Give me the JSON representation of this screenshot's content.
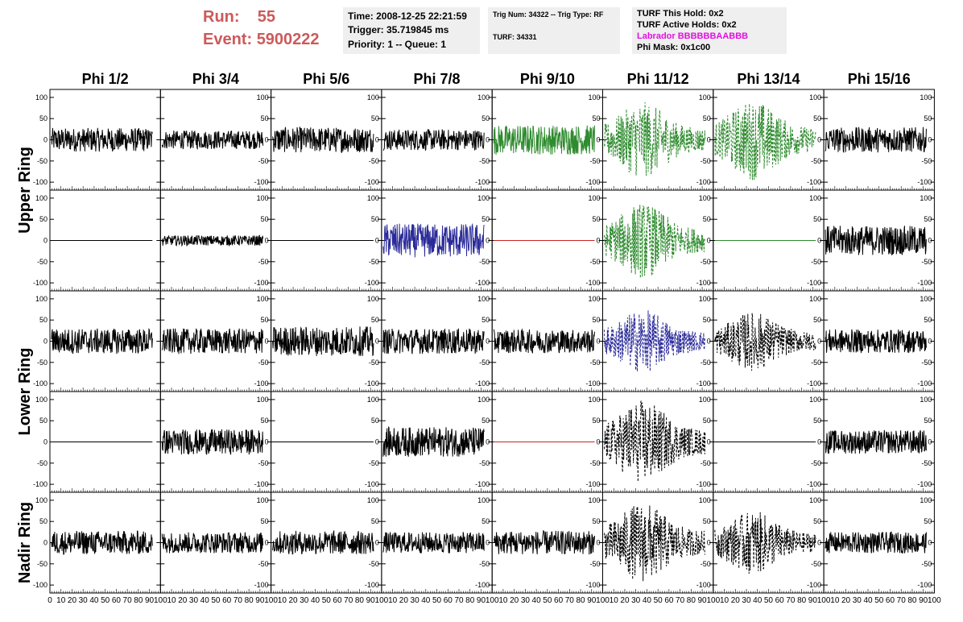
{
  "header": {
    "run_label": "Run:",
    "run_value": "55",
    "event_label": "Event:",
    "event_value": "5900222",
    "time": "Time: 2008-12-25 22:21:59",
    "trigger": "Trigger: 35.719845 ms",
    "priority": "Priority: 1 -- Queue: 1",
    "trig_num": "Trig Num: 34322 -- Trig Type: RF",
    "turf": "TURF: 34331",
    "turf_hold": "TURF This Hold: 0x2",
    "turf_active": "TURF Active Holds: 0x2",
    "labrador": "Labrador BBBBBBAABBB",
    "phi_mask": "Phi Mask: 0x1c00"
  },
  "columns": [
    "Phi 1/2",
    "Phi 3/4",
    "Phi 5/6",
    "Phi 7/8",
    "Phi 9/10",
    "Phi 11/12",
    "Phi 13/14",
    "Phi 15/16"
  ],
  "rows": [
    "Upper Ring",
    "Upper Ring",
    "Lower Ring",
    "Lower Ring",
    "Nadir Ring"
  ],
  "ring_labels": [
    "Upper Ring",
    "Lower Ring",
    "Nadir Ring"
  ],
  "colors": {
    "black": "#000000",
    "green": "#2e8b2e",
    "blue": "#2a2a9a",
    "red": "#cc2222",
    "run_text": "#cc5a5a",
    "magenta": "#e010e0",
    "info_bg": "#efefef"
  },
  "chart_data": {
    "type": "line",
    "title": "",
    "xlabel": "",
    "ylabel": "",
    "xlim": [
      0,
      100
    ],
    "ylim": [
      -115,
      115
    ],
    "x_ticks": [
      "0",
      "10",
      "20",
      "30",
      "40",
      "50",
      "60",
      "70",
      "80",
      "90",
      "100"
    ],
    "y_ticks": [
      "100",
      "50",
      "0",
      "-50",
      "-100"
    ],
    "grid": false,
    "legend": "none",
    "panels": [
      [
        {
          "color": "black",
          "amp": 28,
          "dashed": false,
          "burst": false
        },
        {
          "color": "black",
          "amp": 22,
          "dashed": false,
          "burst": false
        },
        {
          "color": "black",
          "amp": 30,
          "dashed": false,
          "burst": false
        },
        {
          "color": "black",
          "amp": 25,
          "dashed": false,
          "burst": false
        },
        {
          "color": "green",
          "amp": 35,
          "dashed": false,
          "burst": false
        },
        {
          "color": "green",
          "amp": 90,
          "dashed": true,
          "burst": true
        },
        {
          "color": "green",
          "amp": 95,
          "dashed": true,
          "burst": true
        },
        {
          "color": "black",
          "amp": 30,
          "dashed": false,
          "burst": false
        }
      ],
      [
        {
          "color": "black",
          "amp": 0,
          "dashed": false,
          "burst": false
        },
        {
          "color": "black",
          "amp": 12,
          "dashed": false,
          "burst": false
        },
        {
          "color": "black",
          "amp": 0,
          "dashed": false,
          "burst": false
        },
        {
          "color": "blue",
          "amp": 40,
          "dashed": false,
          "burst": false
        },
        {
          "color": "red",
          "amp": 0,
          "dashed": false,
          "burst": false
        },
        {
          "color": "green",
          "amp": 90,
          "dashed": true,
          "burst": true
        },
        {
          "color": "green",
          "amp": 0,
          "dashed": false,
          "burst": false
        },
        {
          "color": "black",
          "amp": 35,
          "dashed": false,
          "burst": false
        }
      ],
      [
        {
          "color": "black",
          "amp": 30,
          "dashed": false,
          "burst": false
        },
        {
          "color": "black",
          "amp": 30,
          "dashed": false,
          "burst": false
        },
        {
          "color": "black",
          "amp": 35,
          "dashed": false,
          "burst": false
        },
        {
          "color": "black",
          "amp": 30,
          "dashed": false,
          "burst": false
        },
        {
          "color": "black",
          "amp": 28,
          "dashed": false,
          "burst": false
        },
        {
          "color": "blue",
          "amp": 75,
          "dashed": true,
          "burst": true
        },
        {
          "color": "black",
          "amp": 70,
          "dashed": true,
          "burst": true
        },
        {
          "color": "black",
          "amp": 28,
          "dashed": false,
          "burst": false
        }
      ],
      [
        {
          "color": "black",
          "amp": 0,
          "dashed": false,
          "burst": false
        },
        {
          "color": "black",
          "amp": 30,
          "dashed": false,
          "burst": false
        },
        {
          "color": "black",
          "amp": 0,
          "dashed": false,
          "burst": false
        },
        {
          "color": "black",
          "amp": 35,
          "dashed": false,
          "burst": false
        },
        {
          "color": "red",
          "amp": 0,
          "dashed": false,
          "burst": false
        },
        {
          "color": "black",
          "amp": 100,
          "dashed": true,
          "burst": true
        },
        {
          "color": "black",
          "amp": 0,
          "dashed": false,
          "burst": false
        },
        {
          "color": "black",
          "amp": 28,
          "dashed": false,
          "burst": false
        }
      ],
      [
        {
          "color": "black",
          "amp": 28,
          "dashed": false,
          "burst": false
        },
        {
          "color": "black",
          "amp": 25,
          "dashed": false,
          "burst": false
        },
        {
          "color": "black",
          "amp": 28,
          "dashed": false,
          "burst": false
        },
        {
          "color": "black",
          "amp": 25,
          "dashed": false,
          "burst": false
        },
        {
          "color": "black",
          "amp": 28,
          "dashed": false,
          "burst": false
        },
        {
          "color": "black",
          "amp": 95,
          "dashed": true,
          "burst": true
        },
        {
          "color": "black",
          "amp": 75,
          "dashed": true,
          "burst": true
        },
        {
          "color": "black",
          "amp": 25,
          "dashed": false,
          "burst": false
        }
      ]
    ]
  }
}
